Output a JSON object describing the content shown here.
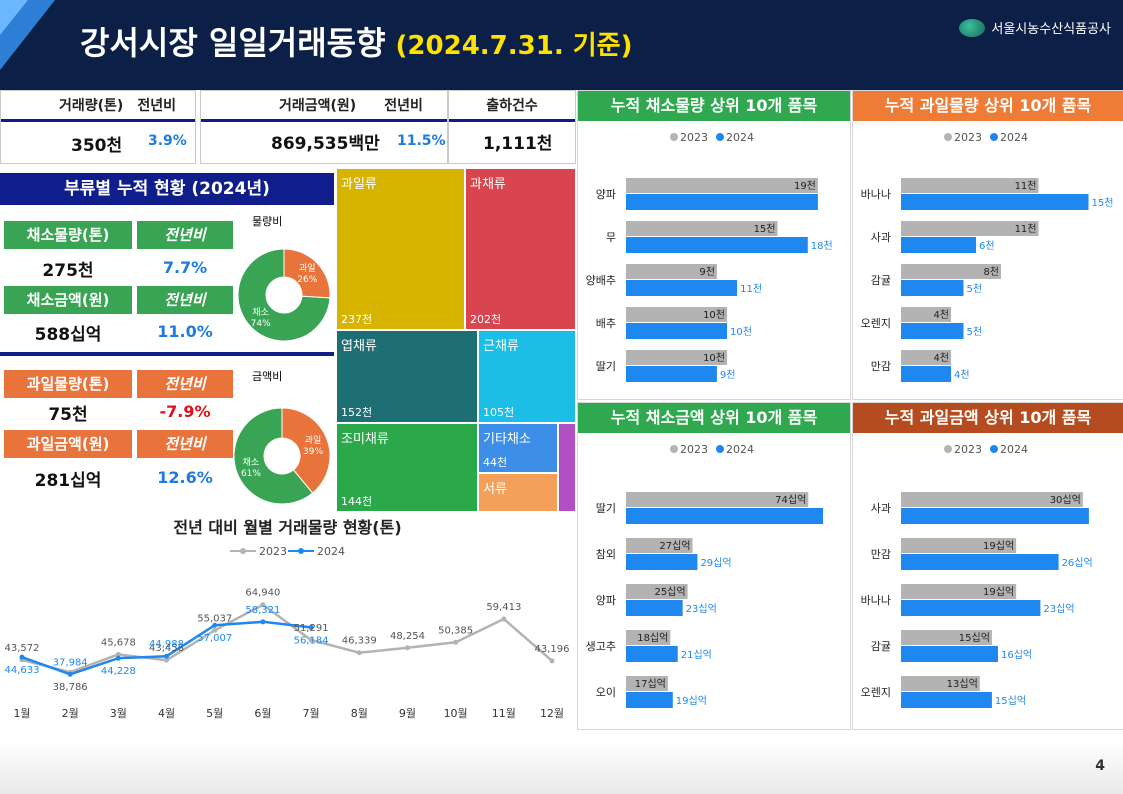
{
  "header": {
    "title": "강서시장 일일거래동향",
    "subtitle": "(2024.7.31. 기준)",
    "org": "서울시농수산식품공사"
  },
  "kpis": {
    "volume": {
      "label": "거래량(톤)",
      "yoy_label": "전년비",
      "value": "350",
      "unit": "천",
      "yoy": "3.9%"
    },
    "amount": {
      "label": "거래금액(원)",
      "yoy_label": "전년비",
      "value": "869,535",
      "unit": "백만",
      "yoy": "11.5%"
    },
    "shipments": {
      "label": "출하건수",
      "value": "1,111",
      "unit": "천"
    }
  },
  "category": {
    "title": "부류별 누적 현황 (2024년)",
    "veg_volume_label": "채소물량(톤)",
    "veg_volume_value": "275",
    "veg_volume_unit": "천",
    "veg_volume_yoy": "7.7%",
    "veg_amount_label": "채소금액(원)",
    "veg_amount_value": "588",
    "veg_amount_unit": "십억",
    "veg_amount_yoy": "11.0%",
    "fruit_volume_label": "과일물량(톤)",
    "fruit_volume_value": "75",
    "fruit_volume_unit": "천",
    "fruit_volume_yoy": "-7.9%",
    "fruit_amount_label": "과일금액(원)",
    "fruit_amount_value": "281",
    "fruit_amount_unit": "십억",
    "fruit_amount_yoy": "12.6%",
    "yoy_label": "전년비",
    "donut_volume": {
      "title": "물량비",
      "fruit_label": "과일",
      "fruit_pct": "26%",
      "veg_label": "채소",
      "veg_pct": "74%",
      "fruit": 26,
      "veg": 74
    },
    "donut_amount": {
      "title": "금액비",
      "fruit_label": "과일",
      "fruit_pct": "39%",
      "veg_label": "채소",
      "veg_pct": "61%",
      "fruit": 39,
      "veg": 61
    }
  },
  "treemap": [
    {
      "label": "과일류",
      "value": "237천",
      "color": "#d6b400"
    },
    {
      "label": "과채류",
      "value": "202천",
      "color": "#d9454f"
    },
    {
      "label": "엽채류",
      "value": "152천",
      "color": "#1e6f73"
    },
    {
      "label": "근채류",
      "value": "105천",
      "color": "#1cbde6"
    },
    {
      "label": "조미채류",
      "value": "144천",
      "color": "#2aa84a"
    },
    {
      "label": "기타채소",
      "value": "44천",
      "color": "#3d8ee6"
    },
    {
      "label": "서류",
      "value": "",
      "color": "#f2a05a"
    }
  ],
  "line_chart": {
    "title": "전년 대비 월별 거래물량 현황(톤)",
    "legend_2023": "2023",
    "legend_2024": "2024",
    "months": [
      "1월",
      "2월",
      "3월",
      "4월",
      "5월",
      "6월",
      "7월",
      "8월",
      "9월",
      "10월",
      "11월",
      "12월"
    ],
    "y2023": [
      43572,
      38786,
      45678,
      43458,
      55037,
      64940,
      51291,
      46339,
      48254,
      50385,
      59413,
      43196
    ],
    "y2024": [
      44633,
      37984,
      44228,
      44988,
      57007,
      58321,
      56184
    ],
    "labels2023": [
      "43,572",
      "38,786",
      "45,678",
      "43,458",
      "55,037",
      "64,940",
      "51,291",
      "46,339",
      "48,254",
      "50,385",
      "59,413",
      "43,196"
    ],
    "labels2024": [
      "44,633",
      "37,984",
      "44,228",
      "44,988",
      "57,007",
      "58,321",
      "56,184"
    ]
  },
  "chart_data": [
    {
      "type": "bar",
      "title": "누적 채소물량 상위 10개 품목",
      "categories": [
        "양파",
        "무",
        "양배추",
        "배추",
        "딸기"
      ],
      "series": [
        {
          "name": "2023",
          "values": [
            19,
            15,
            9,
            10,
            10
          ],
          "labels": [
            "19천",
            "15천",
            "9천",
            "10천",
            "10천"
          ]
        },
        {
          "name": "2024",
          "values": [
            19,
            18,
            11,
            10,
            9
          ],
          "labels": [
            "",
            "18천",
            "11천",
            "10천",
            "9천"
          ]
        }
      ]
    },
    {
      "type": "bar",
      "title": "누적 과일물량 상위 10개 품목",
      "categories": [
        "바나나",
        "사과",
        "감귤",
        "오렌지",
        "만감"
      ],
      "series": [
        {
          "name": "2023",
          "values": [
            11,
            11,
            8,
            4,
            4
          ],
          "labels": [
            "11천",
            "11천",
            "8천",
            "4천",
            "4천"
          ]
        },
        {
          "name": "2024",
          "values": [
            15,
            6,
            5,
            5,
            4
          ],
          "labels": [
            "15천",
            "6천",
            "5천",
            "5천",
            "4천"
          ]
        }
      ]
    },
    {
      "type": "bar",
      "title": "누적 채소금액 상위 10개 품목",
      "categories": [
        "딸기",
        "참외",
        "양파",
        "생고추",
        "오이"
      ],
      "series": [
        {
          "name": "2023",
          "values": [
            74,
            27,
            25,
            18,
            17
          ],
          "labels": [
            "74십억",
            "27십억",
            "25십억",
            "18십억",
            "17십억"
          ]
        },
        {
          "name": "2024",
          "values": [
            80,
            29,
            23,
            21,
            19
          ],
          "labels": [
            "",
            "29십억",
            "23십억",
            "21십억",
            "19십억"
          ]
        }
      ]
    },
    {
      "type": "bar",
      "title": "누적 과일금액 상위 10개 품목",
      "categories": [
        "사과",
        "만감",
        "바나나",
        "감귤",
        "오렌지"
      ],
      "series": [
        {
          "name": "2023",
          "values": [
            30,
            19,
            19,
            15,
            13
          ],
          "labels": [
            "30십억",
            "19십억",
            "19십억",
            "15십억",
            "13십억"
          ]
        },
        {
          "name": "2024",
          "values": [
            31,
            26,
            23,
            16,
            15
          ],
          "labels": [
            "",
            "26십억",
            "23십억",
            "16십억",
            "15십억"
          ]
        }
      ]
    }
  ],
  "colors": {
    "c2023": "#b3b3b3",
    "c2024": "#1e88f0",
    "veg": "#3aa455",
    "fruit": "#e8743b"
  },
  "page": "4"
}
